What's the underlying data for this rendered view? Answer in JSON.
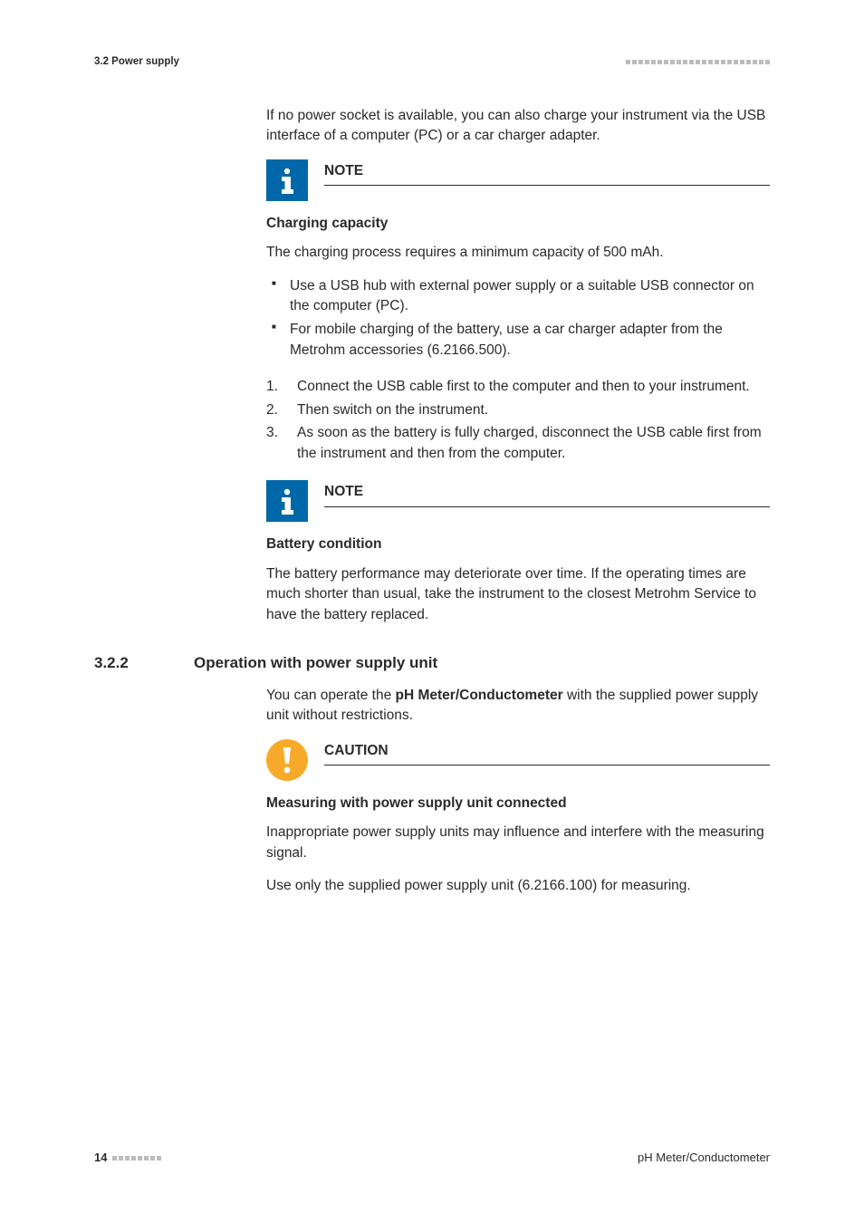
{
  "header": {
    "section_label": "3.2 Power supply",
    "dot_count": 23,
    "dot_color": "#bcbcbc"
  },
  "intro_para": "If no power socket is available, you can also charge your instrument via the USB interface of a computer (PC) or a car charger adapter.",
  "note1": {
    "label": "NOTE",
    "heading": "Charging capacity",
    "body": "The charging process requires a minimum capacity of 500 mAh.",
    "bullets": [
      "Use a USB hub with external power supply or a suitable USB connector on the computer (PC).",
      "For mobile charging of the battery, use a car charger adapter from the Metrohm accessories (6.2166.500)."
    ],
    "icon_bg": "#0068a8"
  },
  "steps": [
    "Connect the USB cable first to the computer and then to your instrument.",
    "Then switch on the instrument.",
    "As soon as the battery is fully charged, disconnect the USB cable first from the instrument and then from the computer."
  ],
  "note2": {
    "label": "NOTE",
    "heading": "Battery condition",
    "body": "The battery performance may deteriorate over time. If the operating times are much shorter than usual, take the instrument to the closest Metrohm Service to have the battery replaced.",
    "icon_bg": "#0068a8"
  },
  "section": {
    "number": "3.2.2",
    "title": "Operation with power supply unit",
    "intro_pre": "You can operate the ",
    "intro_bold": "pH Meter/Conductometer",
    "intro_post": " with the supplied power supply unit without restrictions."
  },
  "caution": {
    "label": "CAUTION",
    "heading": "Measuring with power supply unit connected",
    "body1": "Inappropriate power supply units may influence and interfere with the measuring signal.",
    "body2": "Use only the supplied power supply unit (6.2166.100) for measuring.",
    "icon_bg": "#f7aa2a"
  },
  "footer": {
    "page_number": "14",
    "dot_count": 8,
    "dot_color": "#bcbcbc",
    "doc_title": "pH Meter/Conductometer"
  },
  "colors": {
    "text": "#2a2a2a",
    "rule": "#2a2a2a"
  }
}
